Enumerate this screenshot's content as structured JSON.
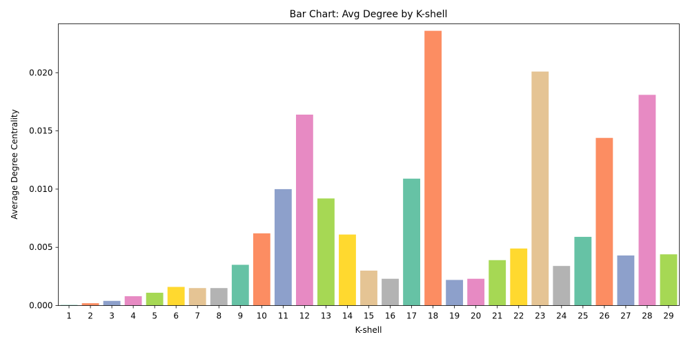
{
  "chart_data": {
    "type": "bar",
    "title": "Bar Chart: Avg Degree by K-shell",
    "xlabel": "K-shell",
    "ylabel": "Average Degree Centrality",
    "categories": [
      "1",
      "2",
      "3",
      "4",
      "5",
      "6",
      "7",
      "8",
      "9",
      "10",
      "11",
      "12",
      "13",
      "14",
      "15",
      "16",
      "17",
      "18",
      "19",
      "20",
      "21",
      "22",
      "23",
      "24",
      "25",
      "26",
      "27",
      "28",
      "29"
    ],
    "values": [
      5e-05,
      0.0002,
      0.0004,
      0.0008,
      0.0011,
      0.0016,
      0.0015,
      0.0015,
      0.0035,
      0.0062,
      0.01,
      0.0164,
      0.0092,
      0.0061,
      0.003,
      0.0023,
      0.0109,
      0.0236,
      0.0022,
      0.0023,
      0.0039,
      0.0049,
      0.0201,
      0.0034,
      0.0059,
      0.0144,
      0.0043,
      0.0181,
      0.0044
    ],
    "ylim": [
      0,
      0.0242
    ],
    "yticks": [
      "0.000",
      "0.005",
      "0.010",
      "0.015",
      "0.020"
    ],
    "ytick_values": [
      0,
      0.005,
      0.01,
      0.015,
      0.02
    ],
    "palette": [
      "#66c2a5",
      "#fc8d62",
      "#8da0cb",
      "#e78ac3",
      "#a6d854",
      "#ffd92f",
      "#e5c494",
      "#b3b3b3"
    ],
    "grid": false,
    "legend": "none"
  }
}
